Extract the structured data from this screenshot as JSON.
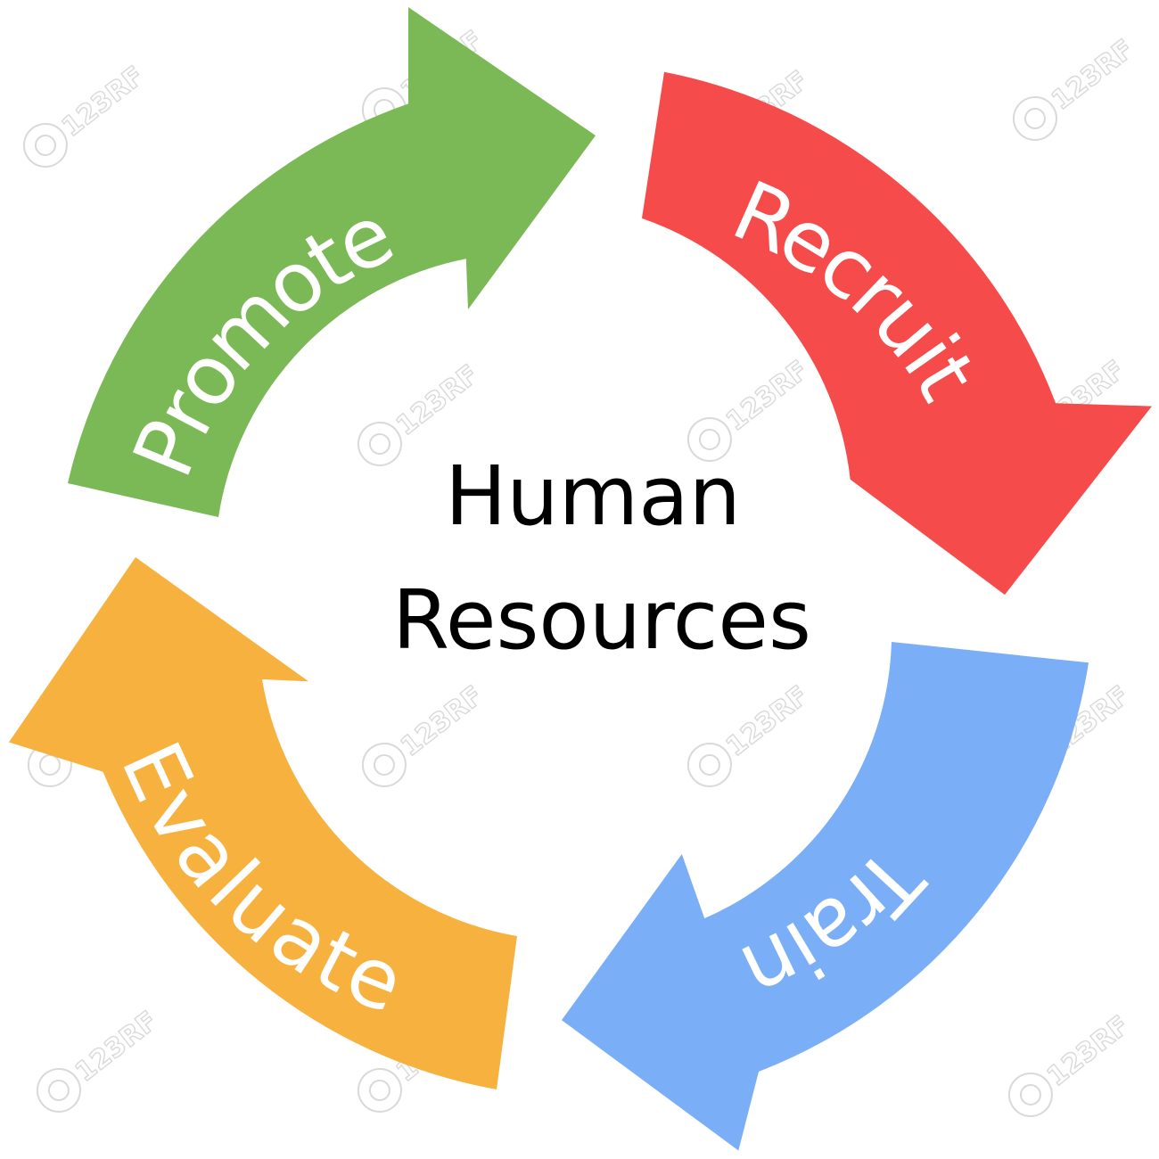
{
  "center": {
    "line1": "Human",
    "line2": "Resources"
  },
  "steps": [
    {
      "label": "Recruit",
      "color": "#f64b4b"
    },
    {
      "label": "Train",
      "color": "#7aaef6"
    },
    {
      "label": "Evaluate",
      "color": "#f7b13f"
    },
    {
      "label": "Promote",
      "color": "#7ab955"
    }
  ],
  "watermark": {
    "text": "123RF",
    "icon": "camera-icon"
  }
}
